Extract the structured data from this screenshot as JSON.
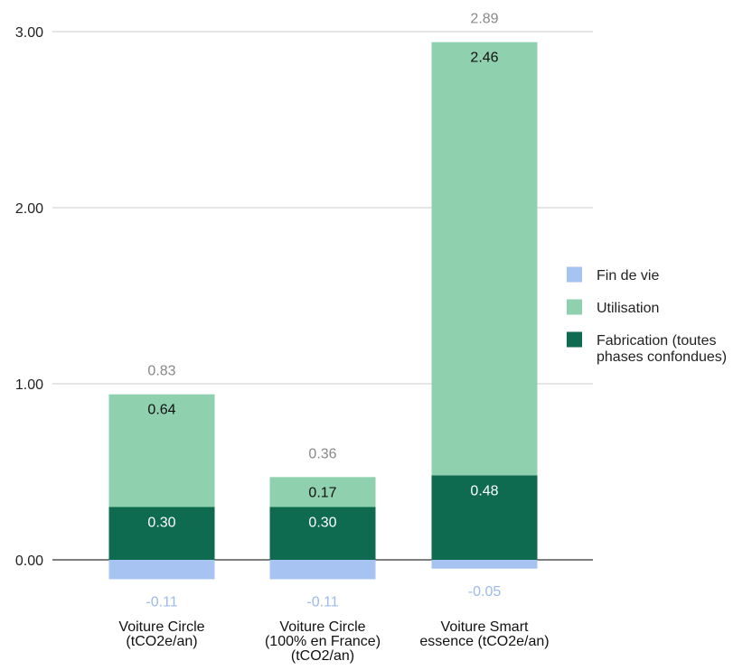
{
  "chart_data": {
    "type": "bar",
    "stacked": true,
    "categories": [
      [
        "Voiture Circle",
        "(tCO2e/an)"
      ],
      [
        "Voiture Circle",
        "(100% en France)",
        "(tCO2/an)"
      ],
      [
        "Voiture Smart",
        "essence (tCO2e/an)"
      ]
    ],
    "series": [
      {
        "name": "Fabrication (toutes phases confondues)",
        "legend_lines": [
          "Fabrication (toutes",
          "phases confondues)"
        ],
        "color": "#0e6b4f",
        "label_color": "#ffffff",
        "values": [
          0.3,
          0.3,
          0.48
        ],
        "labels": [
          "0.30",
          "0.30",
          "0.48"
        ]
      },
      {
        "name": "Utilisation",
        "legend_lines": [
          "Utilisation"
        ],
        "color": "#8fd0ae",
        "label_color": "#111111",
        "values": [
          0.64,
          0.17,
          2.46
        ],
        "labels": [
          "0.64",
          "0.17",
          "2.46"
        ]
      },
      {
        "name": "Fin de vie",
        "legend_lines": [
          "Fin de vie"
        ],
        "color": "#a7c3f2",
        "label_color": "#9bbbe8",
        "values": [
          -0.11,
          -0.11,
          -0.05
        ],
        "labels": [
          "-0.11",
          "-0.11",
          "-0.05"
        ]
      }
    ],
    "totals": [
      "0.83",
      "0.36",
      "2.89"
    ],
    "ylim": [
      0,
      3
    ],
    "yticks": [
      0,
      1,
      2,
      3
    ],
    "ytick_labels": [
      "0.00",
      "1.00",
      "2.00",
      "3.00"
    ],
    "legend_position": "right",
    "legend_order": [
      2,
      1,
      0
    ],
    "grid": true,
    "title": "",
    "xlabel": "",
    "ylabel": ""
  }
}
